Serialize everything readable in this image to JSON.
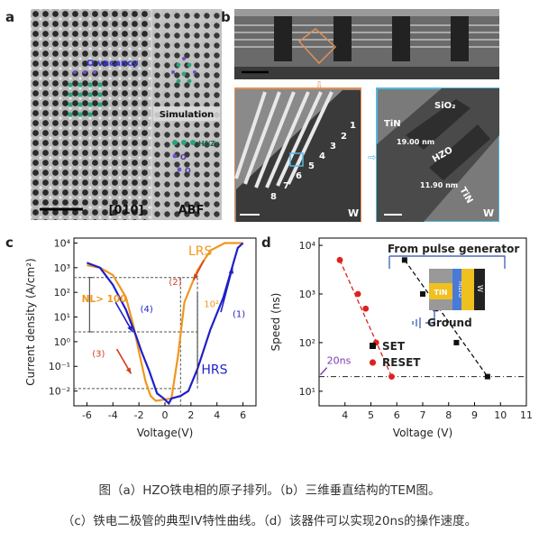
{
  "panels": {
    "a": {
      "label": "a",
      "annotations": [
        "O vacancy",
        "Simulation",
        "[010]",
        "ABF"
      ],
      "legend": [
        "Hf/Zr",
        "O",
        "O"
      ]
    },
    "b": {
      "label": "b",
      "numbers": [
        "1",
        "2",
        "3",
        "4",
        "5",
        "6",
        "7",
        "8"
      ],
      "left_corner": "W",
      "right_labels": {
        "sio2": "SiO₂",
        "tin_top": "TiN",
        "d1": "19.00\nnm",
        "hzo": "HZO",
        "d2": "11.90\nnm",
        "tin_right": "TiN",
        "w": "W"
      }
    },
    "c": {
      "label": "c"
    },
    "d": {
      "label": "d",
      "inset_title": "From pulse generator",
      "inset_tin": "TiN",
      "inset_hzo": "HfZrO",
      "inset_w": "W",
      "ground": "Ground"
    }
  },
  "captions": [
    "图（a）HZO铁电相的原子排列。（b）三维垂直结构的TEM图。",
    "（c）铁电二极管的典型IV特性曲线。（d）该器件可以实现20ns的操作速度。"
  ],
  "colors": {
    "orange": "#f0961e",
    "blue": "#1f1fc8",
    "red": "#e02020",
    "black": "#111111",
    "frame_orange": "#e0905a",
    "frame_blue": "#55b7e0"
  },
  "chart_data": [
    {
      "id": "c",
      "type": "line",
      "xlabel": "Voltage(V)",
      "ylabel": "Current density (A/cm²)",
      "xlim": [
        -7,
        7
      ],
      "xticks": [
        -6,
        -4,
        -2,
        0,
        2,
        4,
        6
      ],
      "ylim_exp": [
        -2.6,
        4.2
      ],
      "yticks": [
        "10⁻²",
        "10⁻¹",
        "10⁰",
        "10¹",
        "10²",
        "10³",
        "10⁴"
      ],
      "annotations": [
        "LRS",
        "HRS",
        "NL> 100",
        "10²",
        "(1)",
        "(2)",
        "(3)",
        "(4)"
      ],
      "series": [
        {
          "values": [
            [
              -6,
              3.1
            ],
            [
              -5,
              3.0
            ],
            [
              -4,
              2.7
            ],
            [
              -3,
              1.8
            ],
            [
              -2.4,
              0.6
            ],
            [
              -2,
              -0.4
            ],
            [
              -1.5,
              -1.6
            ],
            [
              -1.1,
              -2.2
            ],
            [
              -0.7,
              -2.4
            ],
            [
              0.5,
              -2.3
            ],
            [
              1.0,
              -0.6
            ],
            [
              1.5,
              1.6
            ],
            [
              2.5,
              2.9
            ],
            [
              3.5,
              3.7
            ],
            [
              4.6,
              4.0
            ],
            [
              6,
              4.0
            ]
          ]
        },
        {
          "values": [
            [
              -6,
              3.2
            ],
            [
              -5,
              3.0
            ],
            [
              -4,
              2.3
            ],
            [
              -3,
              1.3
            ],
            [
              -2.2,
              0.2
            ],
            [
              -1.8,
              -0.4
            ],
            [
              -1.2,
              -1.2
            ],
            [
              -0.6,
              -2.1
            ],
            [
              -0.1,
              -2.3
            ],
            [
              0.3,
              -2.5
            ],
            [
              0.5,
              -2.3
            ],
            [
              1.2,
              -2.2
            ],
            [
              1.8,
              -2.0
            ],
            [
              2.5,
              -1.1
            ],
            [
              3.5,
              0.5
            ],
            [
              4.5,
              1.8
            ],
            [
              5.6,
              3.8
            ],
            [
              6,
              4.0
            ]
          ]
        }
      ]
    },
    {
      "id": "d",
      "type": "scatter",
      "xlabel": "Voltage (V)",
      "ylabel": "Speed (ns)",
      "xlim": [
        3,
        11
      ],
      "xticks": [
        4,
        5,
        6,
        7,
        8,
        9,
        10,
        11
      ],
      "ylim_exp": [
        0.7,
        4.15
      ],
      "yticks": [
        "10¹",
        "10²",
        "10³",
        "10⁴"
      ],
      "annotations": [
        "20ns"
      ],
      "series": [
        {
          "name": "SET",
          "values": [
            [
              6.3,
              5000
            ],
            [
              7.0,
              1000
            ],
            [
              7.5,
              500
            ],
            [
              8.3,
              100
            ],
            [
              9.5,
              20
            ]
          ]
        },
        {
          "name": "RESET",
          "values": [
            [
              3.8,
              5000
            ],
            [
              4.5,
              1000
            ],
            [
              4.8,
              500
            ],
            [
              5.2,
              100
            ],
            [
              5.8,
              20
            ]
          ]
        }
      ]
    }
  ]
}
